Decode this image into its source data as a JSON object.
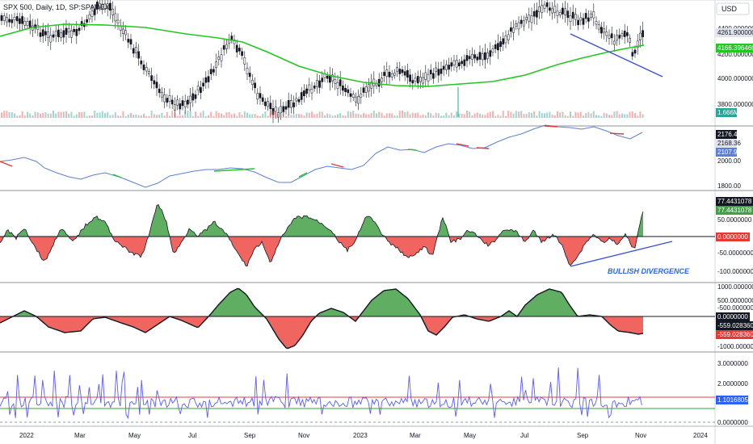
{
  "header": {
    "symbol_title": "SPX 500, Daily, 1D, SP:SPADEX",
    "currency_button": "USD"
  },
  "colors": {
    "candle": "#131722",
    "ma_line": "#22c722",
    "trend_line": "#3a4fd6",
    "osc_line": "#5b7fd9",
    "pos_fill": "#43a047",
    "neg_fill": "#f0544f",
    "divergence_label": "#2962ff",
    "panel_border": "#b2b5be",
    "vol_line": "#5a5aff",
    "upper_band": "#e04040",
    "lower_band": "#2eaa2e"
  },
  "time_axis": [
    "2022",
    "Mar",
    "May",
    "Jul",
    "Sep",
    "Nov",
    "2023",
    "Mar",
    "May",
    "Jul",
    "Sep",
    "Nov",
    "2024"
  ],
  "panels": {
    "price": {
      "axis_labels": [
        "4400.0000000",
        "4200.0000000",
        "4000.0000000",
        "3800.0000000"
      ],
      "tags": [
        {
          "text": "4261.9000000",
          "bg": "#e0e3eb",
          "fg": "#131722"
        },
        {
          "text": "4166.3964600",
          "bg": "#22c722",
          "fg": "#ffffff"
        },
        {
          "text": "1.666M",
          "bg": "#26a69a",
          "fg": "#ffffff"
        }
      ]
    },
    "ratio": {
      "axis_labels": [
        "2000.00",
        "1800.00"
      ],
      "tags": [
        {
          "text": "2176.47",
          "bg": "#131722",
          "fg": "#ffffff"
        },
        {
          "text": "2168.36",
          "bg": "#e0e3eb",
          "fg": "#131722"
        },
        {
          "text": "2107.92",
          "bg": "#5b7fd9",
          "fg": "#ffffff"
        }
      ]
    },
    "oscillator": {
      "axis_labels": [
        "50.0000000",
        "-50.0000000",
        "-100.0000000"
      ],
      "tags": [
        {
          "text": "77.4431078",
          "bg": "#131722",
          "fg": "#ffffff"
        },
        {
          "text": "77.4431078",
          "bg": "#43a047",
          "fg": "#ffffff"
        },
        {
          "text": "0.0000000",
          "bg": "#e53935",
          "fg": "#ffffff"
        }
      ],
      "annotation": "BULLISH DIVERGENCE"
    },
    "cumulative": {
      "axis_labels": [
        "1000.0000000",
        "500.0000000",
        "-500.0000000",
        "-1000.0000000"
      ],
      "tags": [
        {
          "text": "0.0000000",
          "bg": "#131722",
          "fg": "#ffffff"
        },
        {
          "text": "-559.0283603",
          "bg": "#131722",
          "fg": "#ffffff"
        },
        {
          "text": "-559.0283603",
          "bg": "#e53935",
          "fg": "#ffffff"
        }
      ]
    },
    "volatility": {
      "axis_labels": [
        "3.0000000",
        "2.0000000",
        "0.0000000"
      ],
      "tags": [
        {
          "text": "1.1016805",
          "bg": "#2962ff",
          "fg": "#ffffff"
        }
      ]
    }
  }
}
